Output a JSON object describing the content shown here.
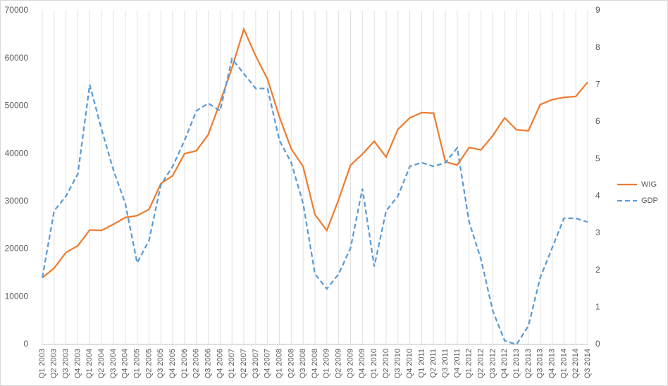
{
  "chart_data": {
    "type": "line",
    "categories": [
      "Q1 2003",
      "Q2 2003",
      "Q3 2003",
      "Q4 2003",
      "Q1 2004",
      "Q2 2004",
      "Q3 2004",
      "Q4 2004",
      "Q1 2005",
      "Q2 2005",
      "Q3 2005",
      "Q4 2005",
      "Q1 2006",
      "Q2 2006",
      "Q3 2006",
      "Q4 2006",
      "Q1 2007",
      "Q2 2007",
      "Q3 2007",
      "Q4 2007",
      "Q1 2008",
      "Q2 2008",
      "Q3 2008",
      "Q4 2008",
      "Q1 2009",
      "Q2 2009",
      "Q3 2009",
      "Q4 2009",
      "Q1 2010",
      "Q2 2010",
      "Q3 2010",
      "Q4 2010",
      "Q1 2011",
      "Q2 2011",
      "Q3 2011",
      "Q4 2011",
      "Q1 2012",
      "Q2 2012",
      "Q3 2012",
      "Q4 2012",
      "Q1 2013",
      "Q2 2013",
      "Q3 2013",
      "Q4 2013",
      "Q1 2014",
      "Q2 2014",
      "Q3 2014"
    ],
    "series": [
      {
        "name": "WIG",
        "color": "#ed7d31",
        "dashed": false,
        "values": [
          14000,
          16000,
          19300,
          20700,
          24000,
          23900,
          25200,
          26600,
          27000,
          28300,
          33700,
          35400,
          40000,
          40600,
          44000,
          50800,
          58000,
          66100,
          60500,
          55600,
          47700,
          41000,
          37300,
          27200,
          23900,
          30400,
          37600,
          39900,
          42600,
          39300,
          45100,
          47500,
          48600,
          48500,
          38300,
          37600,
          41300,
          40800,
          43800,
          47500,
          45000,
          44800,
          50300,
          51300,
          51800,
          52000,
          55000
        ]
      },
      {
        "name": "GDP",
        "color": "#5b9bd5",
        "dashed": true,
        "axis": "y2",
        "values": [
          1.8,
          3.6,
          4.0,
          4.6,
          7.0,
          5.8,
          4.7,
          3.8,
          2.2,
          2.8,
          4.3,
          4.8,
          5.5,
          6.3,
          6.5,
          6.3,
          7.7,
          7.3,
          6.9,
          6.9,
          5.5,
          4.9,
          3.8,
          1.9,
          1.5,
          1.9,
          2.6,
          4.2,
          2.1,
          3.6,
          4.0,
          4.8,
          4.9,
          4.8,
          4.9,
          5.3,
          3.3,
          2.3,
          0.9,
          0.1,
          0.0,
          0.5,
          1.8,
          2.6,
          3.4,
          3.4,
          3.3
        ]
      }
    ],
    "ylim": [
      0,
      70000
    ],
    "yticks": [
      0,
      10000,
      20000,
      30000,
      40000,
      50000,
      60000,
      70000
    ],
    "y2lim": [
      0,
      9
    ],
    "y2ticks": [
      0,
      1,
      2,
      3,
      4,
      5,
      6,
      7,
      8,
      9
    ],
    "xgrid": true,
    "legend": "right"
  }
}
